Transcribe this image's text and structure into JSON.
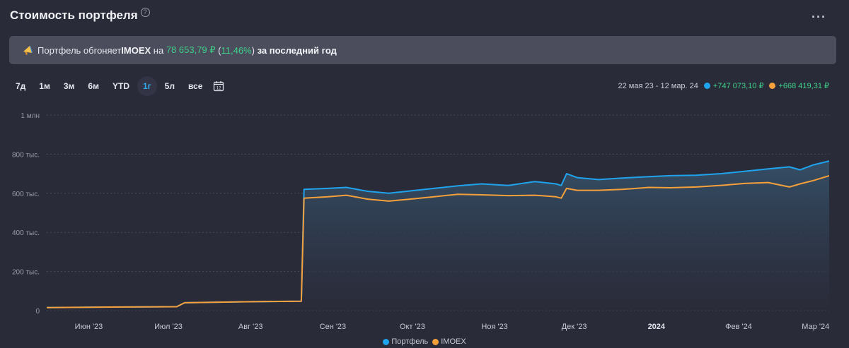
{
  "header": {
    "title": "Стоимость портфеля",
    "help_icon": "?",
    "more_icon": "···"
  },
  "banner": {
    "icon": "megaphone-icon",
    "text_before": "Портфель обгоняет ",
    "benchmark": "IMOEX",
    "text_mid": " на ",
    "amount": "78 653,79 ₽",
    "open_paren": " (",
    "percent": "11,46%",
    "close_paren": ")",
    "text_after": " за последний год"
  },
  "periods": [
    {
      "label": "7д",
      "active": false
    },
    {
      "label": "1м",
      "active": false
    },
    {
      "label": "3м",
      "active": false
    },
    {
      "label": "6м",
      "active": false
    },
    {
      "label": "YTD",
      "active": false
    },
    {
      "label": "1г",
      "active": true
    },
    {
      "label": "5л",
      "active": false
    },
    {
      "label": "все",
      "active": false
    }
  ],
  "range": {
    "dates": "22 мая 23 - 12 мар. 24",
    "portfolio_change": "+747 073,10 ₽",
    "imoex_change": "+668 419,31 ₽"
  },
  "colors": {
    "portfolio": "#1fa3ec",
    "imoex": "#f5a03b",
    "background": "#2a2b39",
    "gain": "#3fd08a"
  },
  "chart_data": {
    "type": "line",
    "y_ticks": [
      "0",
      "200 тыс.",
      "400 тыс.",
      "600 тыс.",
      "800 тыс.",
      "1 млн"
    ],
    "ylim": [
      0,
      1000000
    ],
    "x_ticks": [
      "Июн '23",
      "Июл '23",
      "Авг '23",
      "Сен '23",
      "Окт '23",
      "Ноя '23",
      "Дек '23",
      "2024",
      "Фев '24",
      "Мар '24"
    ],
    "x": [
      "2023-05-22",
      "2023-06-15",
      "2023-07-10",
      "2023-07-13",
      "2023-08-05",
      "2023-08-26",
      "2023-08-27",
      "2023-09-05",
      "2023-09-12",
      "2023-09-20",
      "2023-09-28",
      "2023-10-06",
      "2023-10-15",
      "2023-10-24",
      "2023-11-02",
      "2023-11-12",
      "2023-11-22",
      "2023-11-30",
      "2023-12-02",
      "2023-12-04",
      "2023-12-08",
      "2023-12-16",
      "2023-12-25",
      "2024-01-04",
      "2024-01-12",
      "2024-01-22",
      "2024-01-31",
      "2024-02-09",
      "2024-02-18",
      "2024-02-26",
      "2024-03-01",
      "2024-03-06",
      "2024-03-12"
    ],
    "series": [
      {
        "name": "Портфель",
        "values": [
          15000,
          18000,
          20000,
          40000,
          45000,
          48000,
          620000,
          625000,
          630000,
          610000,
          600000,
          612000,
          625000,
          638000,
          648000,
          640000,
          660000,
          648000,
          640000,
          700000,
          680000,
          670000,
          678000,
          685000,
          690000,
          692000,
          700000,
          712000,
          725000,
          735000,
          720000,
          745000,
          765000
        ]
      },
      {
        "name": "IMOEX",
        "values": [
          15000,
          18000,
          20000,
          40000,
          45000,
          48000,
          575000,
          582000,
          590000,
          570000,
          560000,
          570000,
          582000,
          595000,
          592000,
          588000,
          590000,
          582000,
          575000,
          625000,
          615000,
          615000,
          620000,
          630000,
          628000,
          632000,
          640000,
          650000,
          655000,
          632000,
          648000,
          665000,
          690000
        ]
      }
    ]
  },
  "legend": [
    "Портфель",
    "IMOEX"
  ]
}
